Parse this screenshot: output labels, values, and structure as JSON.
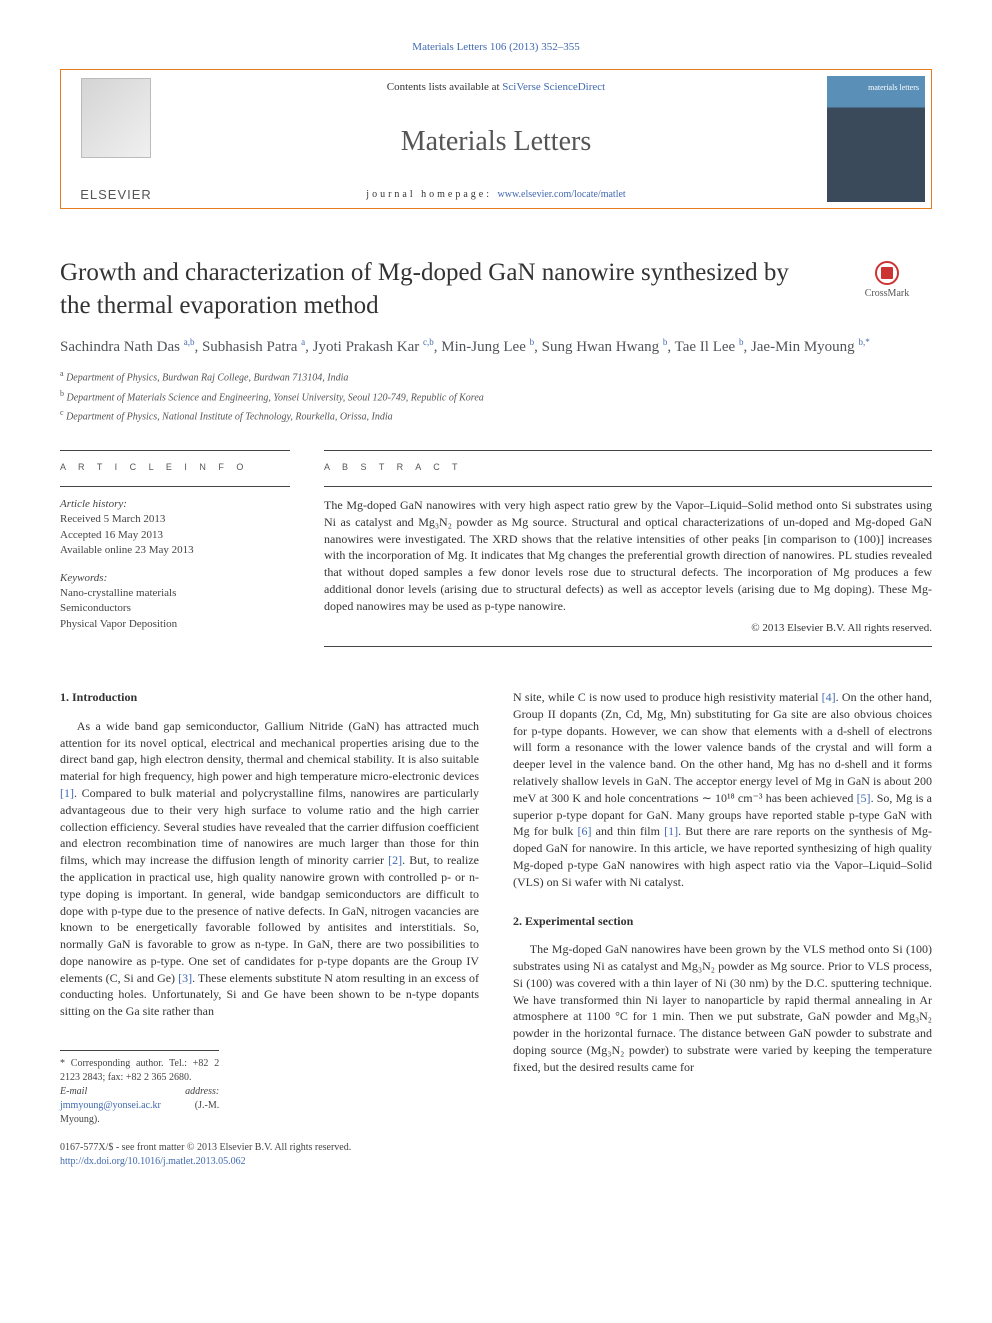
{
  "journal": {
    "citation_line": "Materials Letters 106 (2013) 352–355",
    "contents_line_prefix": "Contents lists available at ",
    "contents_link": "SciVerse ScienceDirect",
    "name": "Materials Letters",
    "homepage_prefix": "journal homepage: ",
    "homepage_link": "www.elsevier.com/locate/matlet",
    "publisher_word": "ELSEVIER",
    "cover_label": "materials letters"
  },
  "colors": {
    "link": "#4169b0",
    "banner_border": "#e67c1f",
    "text": "#333333",
    "muted": "#555555",
    "cover_top": "#5a8fb8",
    "cover_bottom": "#3a4a5a"
  },
  "title": "Growth and characterization of Mg-doped GaN nanowire synthesized by the thermal evaporation method",
  "crossmark": "CrossMark",
  "authors_html": "Sachindra Nath Das <sup>a,b</sup>, Subhasish Patra <sup>a</sup>, Jyoti Prakash Kar <sup>c,b</sup>, Min-Jung Lee <sup>b</sup>, Sung Hwan Hwang <sup>b</sup>, Tae Il Lee <sup>b</sup>, Jae-Min Myoung <sup>b,*</sup>",
  "affiliations": [
    {
      "mark": "a",
      "text": "Department of Physics, Burdwan Raj College, Burdwan 713104, India"
    },
    {
      "mark": "b",
      "text": "Department of Materials Science and Engineering, Yonsei University, Seoul 120-749, Republic of Korea"
    },
    {
      "mark": "c",
      "text": "Department of Physics, National Institute of Technology, Rourkella, Orissa, India"
    }
  ],
  "article_info": {
    "head": "A R T I C L E  I N F O",
    "history_label": "Article history:",
    "history": [
      "Received 5 March 2013",
      "Accepted 16 May 2013",
      "Available online 23 May 2013"
    ],
    "keywords_label": "Keywords:",
    "keywords": [
      "Nano-crystalline materials",
      "Semiconductors",
      "Physical Vapor Deposition"
    ]
  },
  "abstract": {
    "head": "A B S T R A C T",
    "text": "The Mg-doped GaN nanowires with very high aspect ratio grew by the Vapor–Liquid–Solid method onto Si substrates using Ni as catalyst and Mg₃N₂ powder as Mg source. Structural and optical characterizations of un-doped and Mg-doped GaN nanowires were investigated. The XRD shows that the relative intensities of other peaks [in comparison to (100)] increases with the incorporation of Mg. It indicates that Mg changes the preferential growth direction of nanowires. PL studies revealed that without doped samples a few donor levels rose due to structural defects. The incorporation of Mg produces a few additional donor levels (arising due to structural defects) as well as acceptor levels (arising due to Mg doping). These Mg-doped nanowires may be used as p-type nanowire.",
    "copyright": "© 2013 Elsevier B.V. All rights reserved."
  },
  "sections": {
    "intro_head": "1.  Introduction",
    "intro_p1_a": "As a wide band gap semiconductor, Gallium Nitride (GaN) has attracted much attention for its novel optical, electrical and mechanical properties arising due to the direct band gap, high electron density, thermal and chemical stability. It is also suitable material for high frequency, high power and high temperature micro-electronic devices ",
    "intro_ref1": "[1]",
    "intro_p1_b": ". Compared to bulk material and polycrystalline films, nanowires are particularly advantageous due to their very high surface to volume ratio and the high carrier collection efficiency. Several studies have revealed that the carrier diffusion coefficient and electron recombination time of nanowires are much larger than those for thin films, which may increase the diffusion length of minority carrier ",
    "intro_ref2": "[2]",
    "intro_p1_c": ". But, to realize the application in practical use, high quality nanowire grown with controlled p- or n-type doping is important. In general, wide bandgap semiconductors are difficult to dope with p-type due to the presence of native defects. In GaN, nitrogen vacancies are known to be energetically favorable followed by antisites and interstitials. So, normally GaN is favorable to grow as n-type. In GaN, there are two possibilities to dope nanowire as p-type. One set of candidates for p-type dopants are the Group IV elements (C, Si and Ge) ",
    "intro_ref3": "[3]",
    "intro_p1_d": ". These elements substitute N atom resulting in an excess of conducting holes. Unfortunately, Si and Ge have been shown to be n-type dopants sitting on the Ga site rather than",
    "right_p1_a": "N site, while C is now used to produce high resistivity material ",
    "right_ref4": "[4]",
    "right_p1_b": ". On the other hand, Group II dopants (Zn, Cd, Mg, Mn) substituting for Ga site are also obvious choices for p-type dopants. However, we can show that elements with a d-shell of electrons will form a resonance with the lower valence bands of the crystal and will form a deeper level in the valence band. On the other hand, Mg has no d-shell and it forms relatively shallow levels in GaN. The acceptor energy level of Mg in GaN is about 200 meV at 300 K and hole concentrations ∼ 10¹⁸ cm⁻³ has been achieved ",
    "right_ref5": "[5]",
    "right_p1_c": ". So, Mg is a superior p-type dopant for GaN. Many groups have reported stable p-type GaN with Mg for bulk ",
    "right_ref6": "[6]",
    "right_p1_d": " and thin film ",
    "right_ref1b": "[1]",
    "right_p1_e": ". But there are rare reports on the synthesis of Mg-doped GaN for nanowire. In this article, we have reported synthesizing of high quality Mg-doped p-type GaN nanowires with high aspect ratio via the Vapor–Liquid–Solid (VLS) on Si wafer with Ni catalyst.",
    "exp_head": "2.  Experimental section",
    "exp_p1": "The Mg-doped GaN nanowires have been grown by the VLS method onto Si (100) substrates using Ni as catalyst and Mg₃N₂ powder as Mg source. Prior to VLS process, Si (100) was covered with a thin layer of Ni (30 nm) by the D.C. sputtering technique. We have transformed thin Ni layer to nanoparticle by rapid thermal annealing in Ar atmosphere at 1100 °C for 1 min. Then we put substrate, GaN powder and Mg₃N₂ powder in the horizontal furnace. The distance between GaN powder to substrate and doping source (Mg₃N₂ powder) to substrate were varied by keeping the temperature fixed, but the desired results came for"
  },
  "footer": {
    "corr": "* Corresponding author. Tel.: +82 2 2123 2843; fax: +82 2 365 2680.",
    "email_label": "E-mail address: ",
    "email": "jmmyoung@yonsei.ac.kr",
    "email_tail": " (J.-M. Myoung).",
    "issn": "0167-577X/$ - see front matter © 2013 Elsevier B.V. All rights reserved.",
    "doi_link": "http://dx.doi.org/10.1016/j.matlet.2013.05.062"
  }
}
